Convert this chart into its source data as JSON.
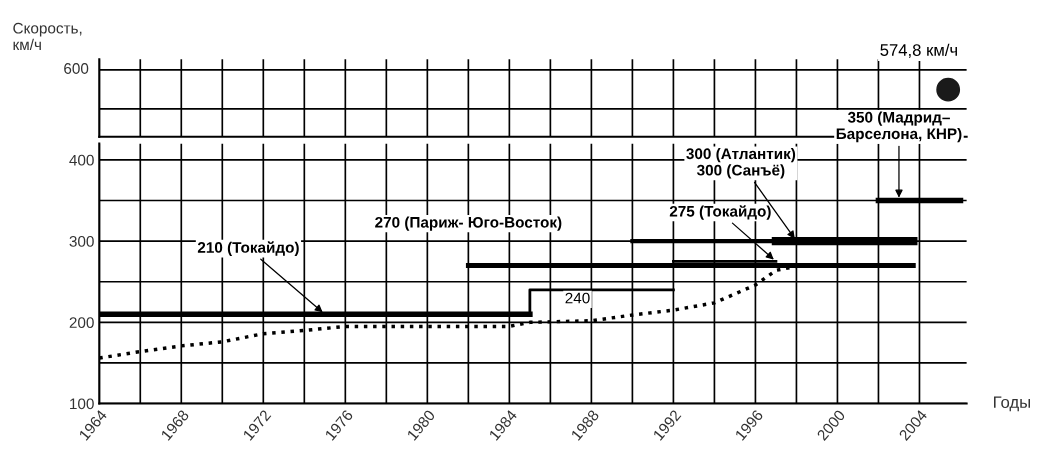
{
  "chart_data": [
    {
      "type": "other",
      "ylabel": "Скорость,\nкм/ч",
      "annotations": [
        "574,8 км/ч",
        "600"
      ]
    },
    {
      "type": "line",
      "xlabel": "Годы",
      "xlim": [
        1964,
        2006.3
      ],
      "xticks": [
        1964,
        {
          "value": 1966,
          "label": null
        },
        1968,
        {
          "value": 1970,
          "label": null
        },
        1972,
        {
          "value": 1974,
          "label": null
        },
        1976,
        {
          "value": 1978,
          "label": null
        },
        1980,
        {
          "value": 1982,
          "label": null
        },
        1984,
        {
          "value": 1986,
          "label": null
        },
        1988,
        {
          "value": 1990,
          "label": null
        },
        1992,
        {
          "value": 1994,
          "label": null
        },
        1996,
        {
          "value": 1998,
          "label": null
        },
        2000,
        {
          "value": 2002,
          "label": null
        },
        2004
      ],
      "ylim": [
        100,
        420
      ],
      "yticks": [
        100,
        {
          "value": 150,
          "label": null
        },
        200,
        {
          "value": 250,
          "label": null
        },
        300,
        {
          "value": 350,
          "label": null
        },
        400
      ],
      "grid": true,
      "series": [
        {
          "color": "#000000",
          "x": [
            1964,
            1985
          ],
          "values": [
            210,
            210
          ]
        },
        {
          "color": "#000000",
          "x": [
            1985,
            1985,
            1992
          ],
          "values": [
            210,
            240,
            240
          ]
        },
        {
          "color": "#000000",
          "x": [
            1982,
            2003.7
          ],
          "values": [
            270,
            270
          ]
        },
        {
          "color": "#000000",
          "x": [
            1992,
            1997
          ],
          "values": [
            275,
            275
          ]
        },
        {
          "color": "#000000",
          "x": [
            1990,
            2003.7
          ],
          "values": [
            300,
            300
          ]
        },
        {
          "color": "#000000",
          "x": [
            1997,
            2003.7
          ],
          "values": [
            300,
            300
          ]
        },
        {
          "color": "#000000",
          "x": [
            2002,
            2006
          ],
          "values": [
            350,
            350
          ]
        },
        {
          "color": "#000000",
          "line_style": "dotted",
          "x": [
            1964,
            1966,
            1968,
            1970,
            1972,
            1974,
            1976,
            1980,
            1984,
            1985,
            1988,
            1990,
            1992,
            1994,
            1995,
            1996,
            1997,
            1998,
            2003.7
          ],
          "values": [
            156,
            164,
            171,
            176,
            186,
            190,
            195,
            195,
            195,
            200,
            202,
            209,
            215,
            224,
            235,
            246,
            264,
            269,
            269
          ]
        }
      ],
      "annotations": [
        {
          "text": "210 (Токайдо)",
          "x": 1975,
          "y": 210
        },
        {
          "text": "270 (Париж- Юго-Восток)",
          "x": 1982,
          "y": 270
        },
        {
          "text": "275 (Токайдо)",
          "x": 1997,
          "y": 275
        },
        {
          "text": "240",
          "x": 1988,
          "y": 240
        },
        {
          "text": "300 (Атлантик)\n300 (Санъё)",
          "x": 1998,
          "y": 300
        },
        {
          "text": "350 (Мадрид–\nБарселона, КНР)",
          "x": 2003,
          "y": 350
        }
      ]
    }
  ]
}
